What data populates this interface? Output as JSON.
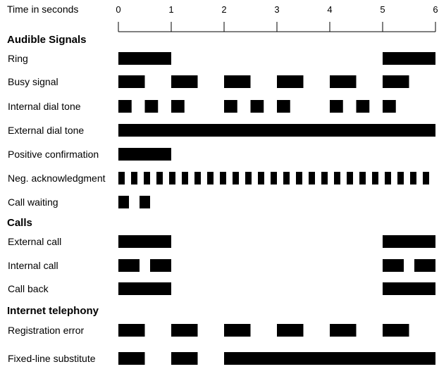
{
  "axis": {
    "label": "Time in seconds",
    "ticks": [
      "0",
      "1",
      "2",
      "3",
      "4",
      "5",
      "6"
    ],
    "min": 0,
    "max": 6
  },
  "sections": [
    {
      "title": "Audible Signals",
      "rows": [
        {
          "label": "Ring",
          "bars": [
            [
              0,
              1
            ],
            [
              5,
              6
            ]
          ]
        },
        {
          "label": "Busy signal",
          "bars": [
            [
              0,
              0.5
            ],
            [
              1,
              1.5
            ],
            [
              2,
              2.5
            ],
            [
              3,
              3.5
            ],
            [
              4,
              4.5
            ],
            [
              5,
              5.5
            ]
          ]
        },
        {
          "label": "Internal dial tone",
          "bars": [
            [
              0,
              0.25
            ],
            [
              0.5,
              0.75
            ],
            [
              1,
              1.25
            ],
            [
              2,
              2.25
            ],
            [
              2.5,
              2.75
            ],
            [
              3,
              3.25
            ],
            [
              4,
              4.25
            ],
            [
              4.5,
              4.75
            ],
            [
              5,
              5.25
            ]
          ]
        },
        {
          "label": "External dial tone",
          "bars": [
            [
              0,
              6
            ]
          ]
        },
        {
          "label": "Positive confirmation",
          "bars": [
            [
              0,
              1
            ]
          ]
        },
        {
          "label": "Neg. acknowledgment",
          "bars": [
            [
              0,
              0.12
            ],
            [
              0.24,
              0.36
            ],
            [
              0.48,
              0.6
            ],
            [
              0.72,
              0.84
            ],
            [
              0.96,
              1.08
            ],
            [
              1.2,
              1.32
            ],
            [
              1.44,
              1.56
            ],
            [
              1.68,
              1.8
            ],
            [
              1.92,
              2.04
            ],
            [
              2.16,
              2.28
            ],
            [
              2.4,
              2.52
            ],
            [
              2.64,
              2.76
            ],
            [
              2.88,
              3.0
            ],
            [
              3.12,
              3.24
            ],
            [
              3.36,
              3.48
            ],
            [
              3.6,
              3.72
            ],
            [
              3.84,
              3.96
            ],
            [
              4.08,
              4.2
            ],
            [
              4.32,
              4.44
            ],
            [
              4.56,
              4.68
            ],
            [
              4.8,
              4.92
            ],
            [
              5.04,
              5.16
            ],
            [
              5.28,
              5.4
            ],
            [
              5.52,
              5.64
            ],
            [
              5.76,
              5.88
            ]
          ]
        },
        {
          "label": "Call waiting",
          "bars": [
            [
              0,
              0.2
            ],
            [
              0.4,
              0.6
            ]
          ]
        }
      ]
    },
    {
      "title": "Calls",
      "rows": [
        {
          "label": "External call",
          "bars": [
            [
              0,
              1
            ],
            [
              5,
              6
            ]
          ]
        },
        {
          "label": "Internal call",
          "bars": [
            [
              0,
              0.4
            ],
            [
              0.6,
              1
            ],
            [
              5,
              5.4
            ],
            [
              5.6,
              6
            ]
          ]
        },
        {
          "label": "Call back",
          "bars": [
            [
              0,
              1
            ],
            [
              5,
              6
            ]
          ]
        }
      ]
    },
    {
      "title": "Internet telephony",
      "rows": [
        {
          "label": "Registration  error",
          "bars": [
            [
              0,
              0.5
            ],
            [
              1,
              1.5
            ],
            [
              2,
              2.5
            ],
            [
              3,
              3.5
            ],
            [
              4,
              4.5
            ],
            [
              5,
              5.5
            ]
          ]
        },
        {
          "label": "Fixed-line substitute",
          "bars": [
            [
              0,
              0.5
            ],
            [
              1,
              1.5
            ],
            [
              2,
              6
            ]
          ]
        }
      ]
    }
  ],
  "colors": {
    "bar": "#000000",
    "axis": "#000000"
  }
}
